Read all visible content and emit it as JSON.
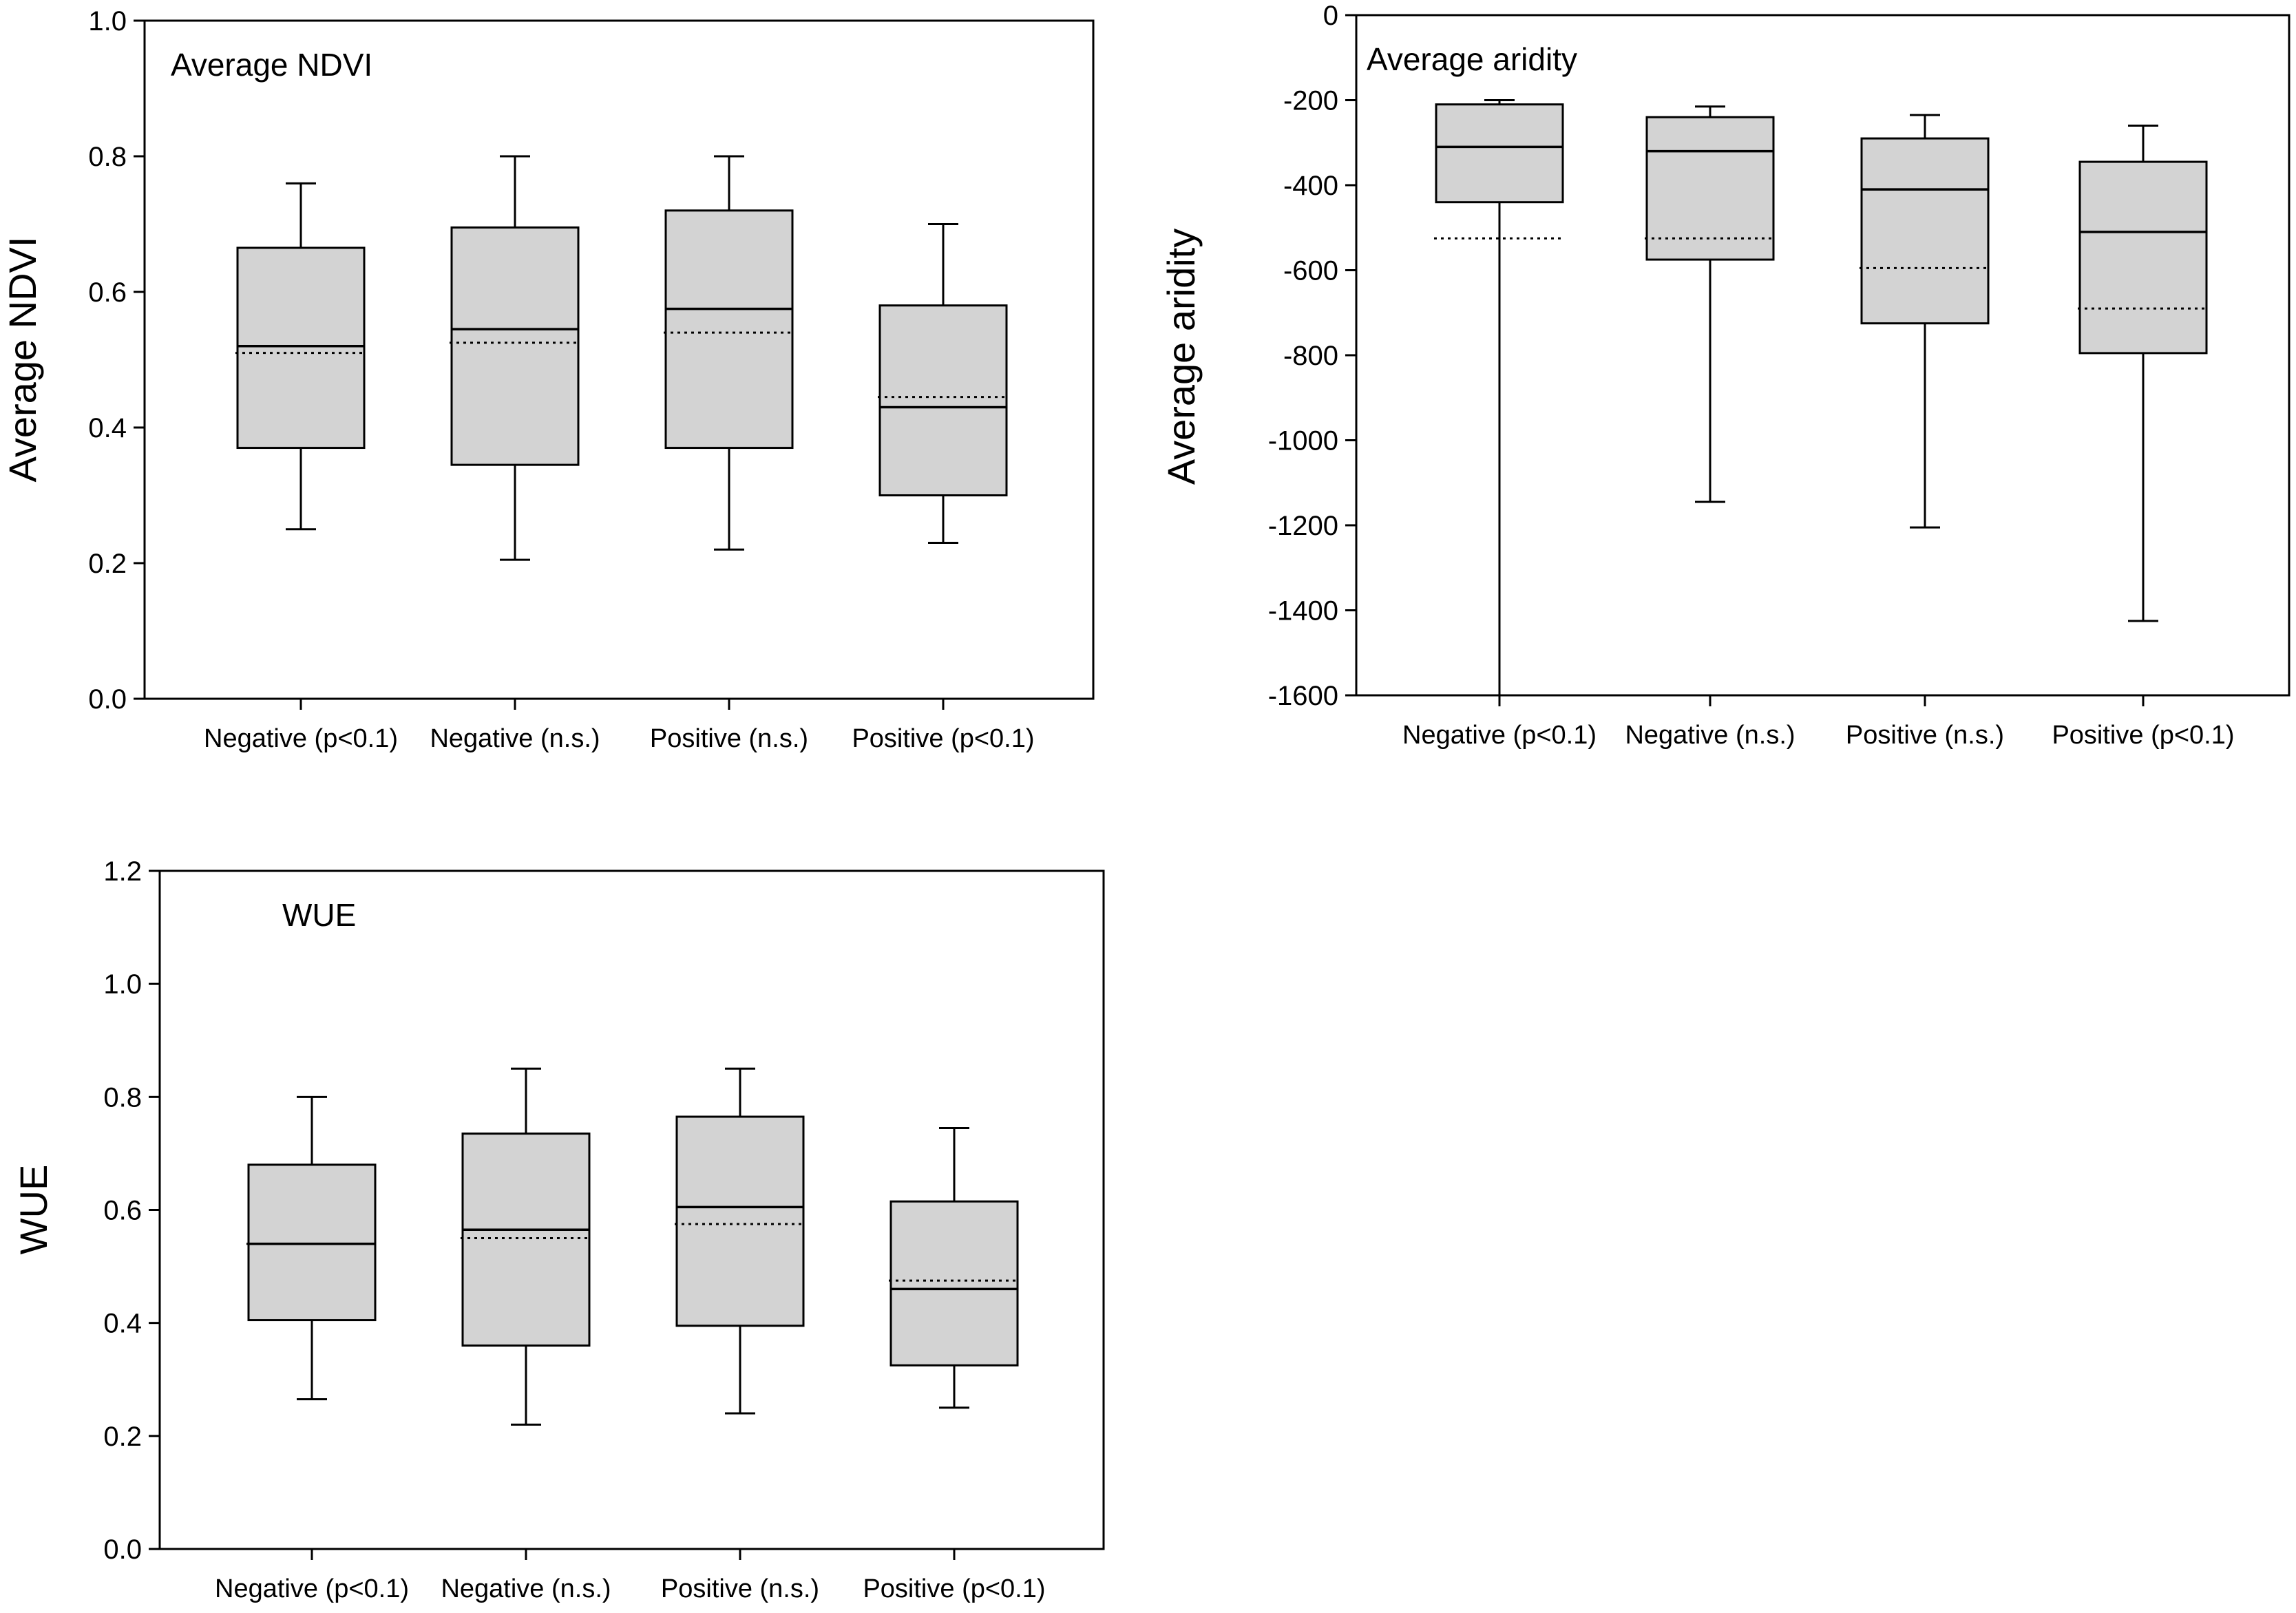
{
  "chart_data": [
    {
      "id": "ndvi",
      "type": "box",
      "title": "Average NDVI",
      "ylabel": "Average NDVI",
      "xlabel": "",
      "ylim": [
        0,
        1.0
      ],
      "yticks": [
        0.0,
        0.2,
        0.4,
        0.6,
        0.8,
        1.0
      ],
      "ytick_labels": [
        "0.0",
        "0.2",
        "0.4",
        "0.6",
        "0.8",
        "1.0"
      ],
      "categories": [
        "Negative (p<0.1)",
        "Negative (n.s.)",
        "Positive (n.s.)",
        "Positive (p<0.1)"
      ],
      "boxes": [
        {
          "whisker_low": 0.25,
          "q1": 0.37,
          "median": 0.52,
          "mean": 0.51,
          "q3": 0.665,
          "whisker_high": 0.76
        },
        {
          "whisker_low": 0.205,
          "q1": 0.345,
          "median": 0.545,
          "mean": 0.525,
          "q3": 0.695,
          "whisker_high": 0.8
        },
        {
          "whisker_low": 0.22,
          "q1": 0.37,
          "median": 0.575,
          "mean": 0.54,
          "q3": 0.72,
          "whisker_high": 0.8
        },
        {
          "whisker_low": 0.23,
          "q1": 0.3,
          "median": 0.43,
          "mean": 0.445,
          "q3": 0.58,
          "whisker_high": 0.7
        }
      ]
    },
    {
      "id": "aridity",
      "type": "box",
      "title": "Average aridity",
      "ylabel": "Average aridity",
      "xlabel": "",
      "ylim": [
        -1600,
        0
      ],
      "yticks": [
        -1600,
        -1400,
        -1200,
        -1000,
        -800,
        -600,
        -400,
        -200,
        0
      ],
      "ytick_labels": [
        "-1600",
        "-1400",
        "-1200",
        "-1000",
        "-800",
        "-600",
        "-400",
        "-200",
        "0"
      ],
      "categories": [
        "Negative (p<0.1)",
        "Negative (n.s.)",
        "Positive (n.s.)",
        "Positive (p<0.1)"
      ],
      "boxes": [
        {
          "whisker_low": -1600,
          "q1": -440,
          "median": -310,
          "mean": -525,
          "q3": -210,
          "whisker_high": -200
        },
        {
          "whisker_low": -1145,
          "q1": -575,
          "median": -320,
          "mean": -525,
          "q3": -240,
          "whisker_high": -215
        },
        {
          "whisker_low": -1205,
          "q1": -725,
          "median": -410,
          "mean": -595,
          "q3": -290,
          "whisker_high": -235
        },
        {
          "whisker_low": -1425,
          "q1": -795,
          "median": -510,
          "mean": -690,
          "q3": -345,
          "whisker_high": -260
        }
      ]
    },
    {
      "id": "wue",
      "type": "box",
      "title": "WUE",
      "ylabel": "WUE",
      "xlabel": "",
      "ylim": [
        0,
        1.2
      ],
      "yticks": [
        0.0,
        0.2,
        0.4,
        0.6,
        0.8,
        1.0,
        1.2
      ],
      "ytick_labels": [
        "0.0",
        "0.2",
        "0.4",
        "0.6",
        "0.8",
        "1.0",
        "1.2"
      ],
      "categories": [
        "Negative (p<0.1)",
        "Negative (n.s.)",
        "Positive (n.s.)",
        "Positive (p<0.1)"
      ],
      "boxes": [
        {
          "whisker_low": 0.265,
          "q1": 0.405,
          "median": 0.54,
          "mean": 0.54,
          "q3": 0.68,
          "whisker_high": 0.8
        },
        {
          "whisker_low": 0.22,
          "q1": 0.36,
          "median": 0.565,
          "mean": 0.55,
          "q3": 0.735,
          "whisker_high": 0.85
        },
        {
          "whisker_low": 0.24,
          "q1": 0.395,
          "median": 0.605,
          "mean": 0.575,
          "q3": 0.765,
          "whisker_high": 0.85
        },
        {
          "whisker_low": 0.25,
          "q1": 0.325,
          "median": 0.46,
          "mean": 0.475,
          "q3": 0.615,
          "whisker_high": 0.745
        }
      ]
    }
  ]
}
